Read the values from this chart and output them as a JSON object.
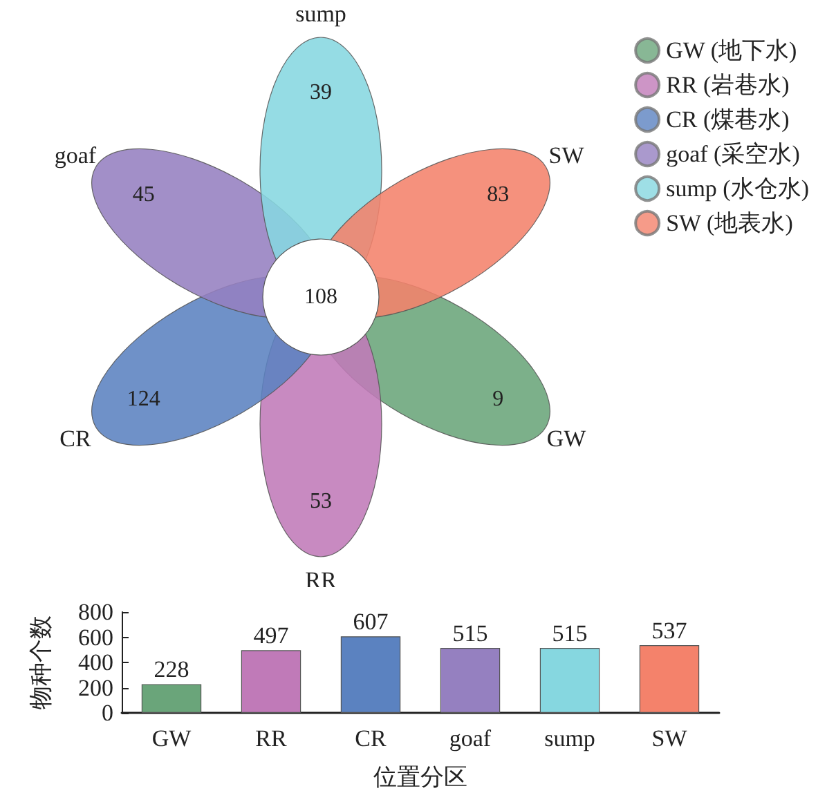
{
  "chart_data": [
    {
      "type": "other",
      "categories": [
        "GW",
        "RR",
        "CR",
        "goaf",
        "sump",
        "SW"
      ],
      "annotations": [
        "108"
      ],
      "legend": "top right",
      "data_labels": true,
      "series": [
        {
          "name": "GW (地下水)",
          "color": "#6aa57a",
          "values": [
            9,
            null,
            null,
            null,
            null,
            null
          ]
        },
        {
          "name": "RR (岩巷水)",
          "color": "#c07ab8",
          "values": [
            null,
            53,
            null,
            null,
            null,
            null
          ]
        },
        {
          "name": "CR (煤巷水)",
          "color": "#5b82c0",
          "values": [
            null,
            null,
            124,
            null,
            null,
            null
          ]
        },
        {
          "name": "goaf (采空水)",
          "color": "#9580c0",
          "values": [
            null,
            null,
            null,
            45,
            null,
            null
          ]
        },
        {
          "name": "sump (水仓水)",
          "color": "#86d7e0",
          "values": [
            null,
            null,
            null,
            null,
            39,
            null
          ]
        },
        {
          "name": "SW (地表水)",
          "color": "#f4826b",
          "values": [
            null,
            null,
            null,
            null,
            null,
            83
          ]
        }
      ]
    },
    {
      "type": "bar",
      "categories": [
        "GW",
        "RR",
        "CR",
        "goaf",
        "sump",
        "SW"
      ],
      "values": [
        228,
        497,
        607,
        515,
        515,
        537
      ],
      "colors": [
        "#6aa57a",
        "#c07ab8",
        "#5b82c0",
        "#9580c0",
        "#86d7e0",
        "#f4826b"
      ],
      "ylim": [
        0,
        800
      ],
      "yticks": [
        0,
        200,
        400,
        600,
        800
      ],
      "xlabel": "位置分区",
      "ylabel": "物种个数",
      "data_labels": true,
      "grid": false
    }
  ]
}
